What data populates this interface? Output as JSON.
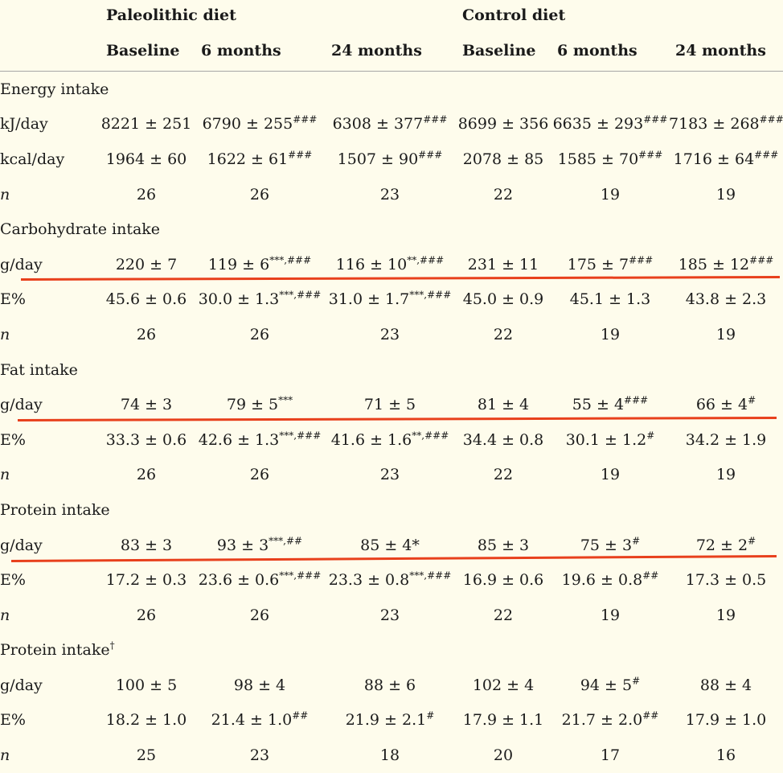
{
  "header": {
    "groups": [
      "Paleolithic diet",
      "Control diet"
    ],
    "columns": [
      "Baseline",
      "6 months",
      "24 months",
      "Baseline",
      "6 months",
      "24 months"
    ]
  },
  "rows": [
    {
      "type": "section",
      "label": "Energy intake",
      "sup": ""
    },
    {
      "type": "data",
      "label": "kJ/day",
      "italic": false,
      "values": [
        {
          "v": "8221 ± 251",
          "s": ""
        },
        {
          "v": "6790 ± 255",
          "s": "###"
        },
        {
          "v": "6308 ± 377",
          "s": "###"
        },
        {
          "v": "8699 ± 356",
          "s": ""
        },
        {
          "v": "6635 ± 293",
          "s": "###"
        },
        {
          "v": "7183 ± 268",
          "s": "###"
        }
      ]
    },
    {
      "type": "data",
      "label": "kcal/day",
      "italic": false,
      "values": [
        {
          "v": "1964 ± 60",
          "s": ""
        },
        {
          "v": "1622 ± 61",
          "s": "###"
        },
        {
          "v": "1507 ± 90",
          "s": "###"
        },
        {
          "v": "2078 ± 85",
          "s": ""
        },
        {
          "v": "1585 ± 70",
          "s": "###"
        },
        {
          "v": "1716 ± 64",
          "s": "###"
        }
      ]
    },
    {
      "type": "data",
      "label": "n",
      "italic": true,
      "values": [
        {
          "v": "26",
          "s": ""
        },
        {
          "v": "26",
          "s": ""
        },
        {
          "v": "23",
          "s": ""
        },
        {
          "v": "22",
          "s": ""
        },
        {
          "v": "19",
          "s": ""
        },
        {
          "v": "19",
          "s": ""
        }
      ]
    },
    {
      "type": "section",
      "label": "Carbohydrate intake",
      "sup": ""
    },
    {
      "type": "data",
      "label": "g/day",
      "italic": false,
      "values": [
        {
          "v": "220 ± 7",
          "s": ""
        },
        {
          "v": "119 ± 6",
          "s": "***,###"
        },
        {
          "v": "116 ± 10",
          "s": "**,###"
        },
        {
          "v": "231 ± 11",
          "s": ""
        },
        {
          "v": "175 ± 7",
          "s": "###"
        },
        {
          "v": "185 ± 12",
          "s": "###"
        }
      ]
    },
    {
      "type": "data",
      "label": "E%",
      "italic": false,
      "values": [
        {
          "v": "45.6 ± 0.6",
          "s": ""
        },
        {
          "v": "30.0 ± 1.3",
          "s": "***,###"
        },
        {
          "v": "31.0 ± 1.7",
          "s": "***,###"
        },
        {
          "v": "45.0 ± 0.9",
          "s": ""
        },
        {
          "v": "45.1 ± 1.3",
          "s": ""
        },
        {
          "v": "43.8 ± 2.3",
          "s": ""
        }
      ]
    },
    {
      "type": "data",
      "label": "n",
      "italic": true,
      "values": [
        {
          "v": "26",
          "s": ""
        },
        {
          "v": "26",
          "s": ""
        },
        {
          "v": "23",
          "s": ""
        },
        {
          "v": "22",
          "s": ""
        },
        {
          "v": "19",
          "s": ""
        },
        {
          "v": "19",
          "s": ""
        }
      ]
    },
    {
      "type": "section",
      "label": "Fat intake",
      "sup": ""
    },
    {
      "type": "data",
      "label": "g/day",
      "italic": false,
      "values": [
        {
          "v": "74 ± 3",
          "s": ""
        },
        {
          "v": "79 ± 5",
          "s": "***"
        },
        {
          "v": "71 ± 5",
          "s": ""
        },
        {
          "v": "81 ± 4",
          "s": ""
        },
        {
          "v": "55 ± 4",
          "s": "###"
        },
        {
          "v": "66 ± 4",
          "s": "#"
        }
      ]
    },
    {
      "type": "data",
      "label": "E%",
      "italic": false,
      "values": [
        {
          "v": "33.3 ± 0.6",
          "s": ""
        },
        {
          "v": "42.6 ± 1.3",
          "s": "***,###"
        },
        {
          "v": "41.6 ± 1.6",
          "s": "**,###"
        },
        {
          "v": "34.4 ± 0.8",
          "s": ""
        },
        {
          "v": "30.1 ± 1.2",
          "s": "#"
        },
        {
          "v": "34.2 ± 1.9",
          "s": ""
        }
      ]
    },
    {
      "type": "data",
      "label": "n",
      "italic": true,
      "values": [
        {
          "v": "26",
          "s": ""
        },
        {
          "v": "26",
          "s": ""
        },
        {
          "v": "23",
          "s": ""
        },
        {
          "v": "22",
          "s": ""
        },
        {
          "v": "19",
          "s": ""
        },
        {
          "v": "19",
          "s": ""
        }
      ]
    },
    {
      "type": "section",
      "label": "Protein intake",
      "sup": ""
    },
    {
      "type": "data",
      "label": "g/day",
      "italic": false,
      "values": [
        {
          "v": "83 ± 3",
          "s": ""
        },
        {
          "v": "93 ± 3",
          "s": "***,##"
        },
        {
          "v": "85 ± 4*",
          "s": ""
        },
        {
          "v": "85 ± 3",
          "s": ""
        },
        {
          "v": "75 ± 3",
          "s": "#"
        },
        {
          "v": "72 ± 2",
          "s": "#"
        }
      ]
    },
    {
      "type": "data",
      "label": "E%",
      "italic": false,
      "values": [
        {
          "v": "17.2 ± 0.3",
          "s": ""
        },
        {
          "v": "23.6 ± 0.6",
          "s": "***,###"
        },
        {
          "v": "23.3 ± 0.8",
          "s": "***,###"
        },
        {
          "v": "16.9 ± 0.6",
          "s": ""
        },
        {
          "v": "19.6 ± 0.8",
          "s": "##"
        },
        {
          "v": "17.3 ± 0.5",
          "s": ""
        }
      ]
    },
    {
      "type": "data",
      "label": "n",
      "italic": true,
      "values": [
        {
          "v": "26",
          "s": ""
        },
        {
          "v": "26",
          "s": ""
        },
        {
          "v": "23",
          "s": ""
        },
        {
          "v": "22",
          "s": ""
        },
        {
          "v": "19",
          "s": ""
        },
        {
          "v": "19",
          "s": ""
        }
      ]
    },
    {
      "type": "section",
      "label": "Protein intake",
      "sup": "†"
    },
    {
      "type": "data",
      "label": "g/day",
      "italic": false,
      "values": [
        {
          "v": "100 ± 5",
          "s": ""
        },
        {
          "v": "98 ± 4",
          "s": ""
        },
        {
          "v": "88 ± 6",
          "s": ""
        },
        {
          "v": "102 ± 4",
          "s": ""
        },
        {
          "v": "94 ± 5",
          "s": "#"
        },
        {
          "v": "88 ± 4",
          "s": ""
        }
      ]
    },
    {
      "type": "data",
      "label": "E%",
      "italic": false,
      "values": [
        {
          "v": "18.2 ± 1.0",
          "s": ""
        },
        {
          "v": "21.4 ± 1.0",
          "s": "##"
        },
        {
          "v": "21.9 ± 2.1",
          "s": "#"
        },
        {
          "v": "17.9 ± 1.1",
          "s": ""
        },
        {
          "v": "21.7 ± 2.0",
          "s": "##"
        },
        {
          "v": "17.9 ± 1.0",
          "s": ""
        }
      ]
    },
    {
      "type": "data",
      "label": "n",
      "italic": true,
      "values": [
        {
          "v": "25",
          "s": ""
        },
        {
          "v": "23",
          "s": ""
        },
        {
          "v": "18",
          "s": ""
        },
        {
          "v": "20",
          "s": ""
        },
        {
          "v": "17",
          "s": ""
        },
        {
          "v": "16",
          "s": ""
        }
      ]
    }
  ],
  "annotations": {
    "line_color": "#e8401c"
  }
}
